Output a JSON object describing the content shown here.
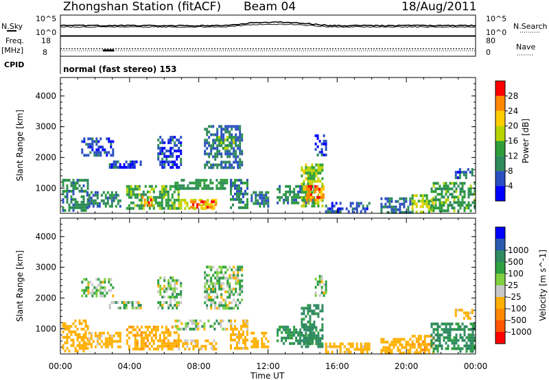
{
  "header": {
    "station": "Zhongshan Station (fitACF)",
    "beam": "Beam 04",
    "date": "18/Aug/2011"
  },
  "top_panels": {
    "nsky_label": "N.Sky",
    "nsky_ticks": [
      "10^5",
      "10^0"
    ],
    "nsearch_label": "N.Search",
    "nsearch_ticks": [
      "10^5",
      "10^0"
    ],
    "freq_label": "Freq.",
    "freq_unit": "[MHz]",
    "freq_ticks": [
      "18",
      "8"
    ],
    "nave_label": "Nave",
    "nave_ticks": [
      "80",
      "0"
    ],
    "cpid_label": "CPID",
    "cpid_text": "normal (fast stereo) 153"
  },
  "colors": {
    "power_scale": [
      "#0000ff",
      "#2a4fc0",
      "#2d8a5a",
      "#2e9e3a",
      "#b8d400",
      "#ffcc00",
      "#ff8800",
      "#ff0000"
    ],
    "velocity_scale": [
      "#ff0000",
      "#ff5500",
      "#ff8800",
      "#ffb000",
      "#c8c8c8",
      "#7fd040",
      "#2ea040",
      "#2e8a60",
      "#2a5ab0",
      "#0000ff"
    ]
  },
  "chart_data": [
    {
      "type": "heatmap",
      "panel": "power",
      "ylabel": "Slant Range [km]",
      "xlabel": "Time UT",
      "x_range_hours": [
        0,
        24
      ],
      "y_range_km": [
        180,
        4600
      ],
      "x_ticks": [
        "00:00",
        "04:00",
        "08:00",
        "12:00",
        "16:00",
        "20:00",
        "00:00"
      ],
      "y_ticks": [
        "1000",
        "2000",
        "3000",
        "4000"
      ],
      "colorbar_label": "Power [dB]",
      "colorbar_ticks": [
        "4",
        "8",
        "12",
        "16",
        "20",
        "24",
        "28"
      ],
      "colorbar_range": [
        0,
        32
      ],
      "regions": [
        {
          "t": [
            0.1,
            1.6
          ],
          "r": [
            300,
            1300
          ],
          "v": 10
        },
        {
          "t": [
            1.2,
            3.0
          ],
          "r": [
            2100,
            2650
          ],
          "v": 5
        },
        {
          "t": [
            2.8,
            4.6
          ],
          "r": [
            1650,
            1900
          ],
          "v": 5
        },
        {
          "t": [
            1.5,
            3.5
          ],
          "r": [
            400,
            900
          ],
          "v": 9
        },
        {
          "t": [
            3.8,
            6.8
          ],
          "r": [
            350,
            1100
          ],
          "v": 14
        },
        {
          "t": [
            4.7,
            5.3
          ],
          "r": [
            450,
            750
          ],
          "v": 26
        },
        {
          "t": [
            5.6,
            7.0
          ],
          "r": [
            1700,
            2700
          ],
          "v": 5
        },
        {
          "t": [
            6.6,
            9.9
          ],
          "r": [
            1000,
            1300
          ],
          "v": 12
        },
        {
          "t": [
            6.8,
            9.0
          ],
          "r": [
            300,
            650
          ],
          "v": 20
        },
        {
          "t": [
            7.5,
            9.0
          ],
          "r": [
            400,
            600
          ],
          "v": 26
        },
        {
          "t": [
            8.3,
            10.5
          ],
          "r": [
            1700,
            3050
          ],
          "v": 8
        },
        {
          "t": [
            9.0,
            10.0
          ],
          "r": [
            2300,
            2700
          ],
          "v": 13
        },
        {
          "t": [
            9.8,
            10.8
          ],
          "r": [
            400,
            1300
          ],
          "v": 10
        },
        {
          "t": [
            11.0,
            12.0
          ],
          "r": [
            450,
            900
          ],
          "v": 9
        },
        {
          "t": [
            12.5,
            14.6
          ],
          "r": [
            500,
            1100
          ],
          "v": 10
        },
        {
          "t": [
            13.9,
            15.2
          ],
          "r": [
            400,
            1800
          ],
          "v": 17
        },
        {
          "t": [
            14.2,
            15.2
          ],
          "r": [
            600,
            1100
          ],
          "v": 26
        },
        {
          "t": [
            14.7,
            15.3
          ],
          "r": [
            2100,
            2750
          ],
          "v": 5
        },
        {
          "t": [
            15.3,
            17.8
          ],
          "r": [
            280,
            550
          ],
          "v": 6
        },
        {
          "t": [
            18.5,
            20.2
          ],
          "r": [
            200,
            700
          ],
          "v": 8
        },
        {
          "t": [
            20.3,
            21.5
          ],
          "r": [
            200,
            800
          ],
          "v": 17
        },
        {
          "t": [
            21.4,
            24.0
          ],
          "r": [
            250,
            1200
          ],
          "v": 13
        },
        {
          "t": [
            22.8,
            23.8
          ],
          "r": [
            1350,
            1650
          ],
          "v": 7
        }
      ]
    },
    {
      "type": "heatmap",
      "panel": "velocity",
      "ylabel": "Slant Range [km]",
      "xlabel": "Time UT",
      "x_range_hours": [
        0,
        24
      ],
      "y_range_km": [
        180,
        4600
      ],
      "x_ticks": [
        "00:00",
        "04:00",
        "08:00",
        "12:00",
        "16:00",
        "20:00",
        "00:00"
      ],
      "y_ticks": [
        "1000",
        "2000",
        "3000",
        "4000"
      ],
      "colorbar_label": "Velocity [m s^-1]",
      "colorbar_ticks": [
        "-1000",
        "-500",
        "-100",
        "-25",
        "25",
        "100",
        "500",
        "1000"
      ],
      "regions": [
        {
          "t": [
            0.1,
            1.6
          ],
          "r": [
            300,
            1300
          ],
          "v": -300
        },
        {
          "t": [
            1.2,
            3.0
          ],
          "r": [
            2100,
            2650
          ],
          "v": 0
        },
        {
          "t": [
            2.8,
            4.6
          ],
          "r": [
            1650,
            1900
          ],
          "v": 0
        },
        {
          "t": [
            1.5,
            3.5
          ],
          "r": [
            400,
            900
          ],
          "v": -200
        },
        {
          "t": [
            3.8,
            6.8
          ],
          "r": [
            350,
            1100
          ],
          "v": -400
        },
        {
          "t": [
            5.6,
            7.0
          ],
          "r": [
            1700,
            2700
          ],
          "v": 0
        },
        {
          "t": [
            6.6,
            9.9
          ],
          "r": [
            1000,
            1300
          ],
          "v": 0
        },
        {
          "t": [
            6.8,
            9.0
          ],
          "r": [
            300,
            650
          ],
          "v": -150
        },
        {
          "t": [
            8.3,
            10.5
          ],
          "r": [
            1700,
            3050
          ],
          "v": 0
        },
        {
          "t": [
            9.8,
            10.8
          ],
          "r": [
            400,
            1300
          ],
          "v": -200
        },
        {
          "t": [
            11.0,
            12.0
          ],
          "r": [
            450,
            900
          ],
          "v": -300
        },
        {
          "t": [
            12.5,
            14.6
          ],
          "r": [
            500,
            1100
          ],
          "v": 150
        },
        {
          "t": [
            13.9,
            15.2
          ],
          "r": [
            400,
            1800
          ],
          "v": 200
        },
        {
          "t": [
            14.7,
            15.3
          ],
          "r": [
            2100,
            2750
          ],
          "v": 0
        },
        {
          "t": [
            15.3,
            17.8
          ],
          "r": [
            280,
            550
          ],
          "v": -200
        },
        {
          "t": [
            18.5,
            20.2
          ],
          "r": [
            200,
            700
          ],
          "v": -300
        },
        {
          "t": [
            20.3,
            21.5
          ],
          "r": [
            200,
            800
          ],
          "v": -400
        },
        {
          "t": [
            21.4,
            24.0
          ],
          "r": [
            250,
            1200
          ],
          "v": 150
        },
        {
          "t": [
            22.8,
            23.8
          ],
          "r": [
            1350,
            1650
          ],
          "v": -200
        }
      ]
    }
  ]
}
